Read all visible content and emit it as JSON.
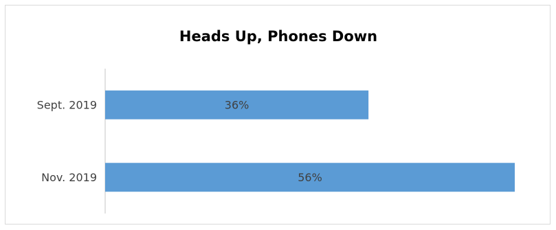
{
  "chart_data": {
    "type": "bar",
    "orientation": "horizontal",
    "title": "Heads Up, Phones Down",
    "categories": [
      "Sept. 2019",
      "Nov. 2019"
    ],
    "values": [
      36,
      56
    ],
    "data_labels": [
      "36%",
      "56%"
    ],
    "unit": "%",
    "xlim": [
      0,
      56
    ],
    "grid": false,
    "legend": "none",
    "bar_color": "#5b9bd5",
    "axis_color": "#d9d9d9"
  }
}
